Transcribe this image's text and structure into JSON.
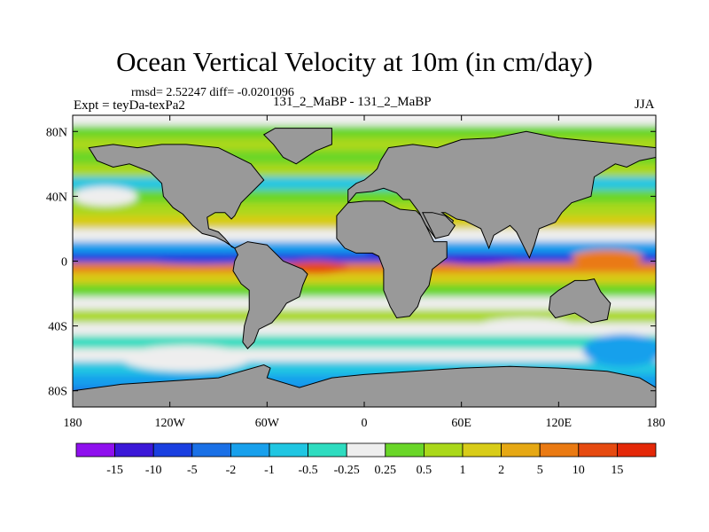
{
  "chart_data": {
    "type": "heatmap",
    "title": "Ocean Vertical Velocity at 10m (in cm/day)",
    "stats": "rmsd= 2.52247 diff= -0.0201096",
    "left_label": "Expt = teyDa-texPa2",
    "center_label": "131_2_MaBP - 131_2_MaBP",
    "right_label": "JJA",
    "xlim": [
      -180,
      180
    ],
    "ylim": [
      -90,
      90
    ],
    "x_ticks": [
      {
        "value": -180,
        "label": "180"
      },
      {
        "value": -120,
        "label": "120W"
      },
      {
        "value": -60,
        "label": "60W"
      },
      {
        "value": 0,
        "label": "0"
      },
      {
        "value": 60,
        "label": "60E"
      },
      {
        "value": 120,
        "label": "120E"
      },
      {
        "value": 180,
        "label": "180"
      }
    ],
    "y_ticks": [
      {
        "value": 80,
        "label": "80N"
      },
      {
        "value": 40,
        "label": "40N"
      },
      {
        "value": 0,
        "label": "0"
      },
      {
        "value": -40,
        "label": "40S"
      },
      {
        "value": -80,
        "label": "80S"
      }
    ],
    "colorbar": {
      "labels": [
        "-15",
        "-10",
        "-5",
        "-2",
        "-1",
        "-0.5",
        "-0.25",
        "0.25",
        "0.5",
        "1",
        "2",
        "5",
        "10",
        "15"
      ],
      "colors": [
        "#8f10ee",
        "#3b18d8",
        "#1a3fe0",
        "#1a70e6",
        "#18a0ec",
        "#20c6e2",
        "#2edcc0",
        "#eeeeee",
        "#6ad628",
        "#aad81a",
        "#d8cc18",
        "#e6a814",
        "#ea7a12",
        "#e64a10",
        "#e42808"
      ]
    },
    "land_color": "#999999",
    "land_masses": [
      {
        "name": "North America",
        "points": [
          [
            -170,
            70
          ],
          [
            -155,
            72
          ],
          [
            -140,
            70
          ],
          [
            -125,
            72
          ],
          [
            -110,
            72
          ],
          [
            -90,
            70
          ],
          [
            -80,
            65
          ],
          [
            -70,
            60
          ],
          [
            -62,
            50
          ],
          [
            -68,
            44
          ],
          [
            -76,
            36
          ],
          [
            -80,
            28
          ],
          [
            -82,
            26
          ],
          [
            -86,
            30
          ],
          [
            -92,
            30
          ],
          [
            -97,
            27
          ],
          [
            -96,
            20
          ],
          [
            -90,
            18
          ],
          [
            -86,
            14
          ],
          [
            -82,
            9
          ],
          [
            -80,
            8
          ],
          [
            -86,
            12
          ],
          [
            -92,
            15
          ],
          [
            -100,
            17
          ],
          [
            -106,
            22
          ],
          [
            -112,
            29
          ],
          [
            -118,
            33
          ],
          [
            -124,
            40
          ],
          [
            -125,
            48
          ],
          [
            -132,
            55
          ],
          [
            -145,
            60
          ],
          [
            -155,
            58
          ],
          [
            -165,
            62
          ]
        ]
      },
      {
        "name": "Greenland",
        "points": [
          [
            -55,
            82
          ],
          [
            -20,
            82
          ],
          [
            -20,
            72
          ],
          [
            -30,
            68
          ],
          [
            -42,
            60
          ],
          [
            -50,
            64
          ],
          [
            -56,
            72
          ],
          [
            -62,
            78
          ]
        ]
      },
      {
        "name": "South America",
        "points": [
          [
            -80,
            8
          ],
          [
            -72,
            12
          ],
          [
            -60,
            10
          ],
          [
            -50,
            0
          ],
          [
            -38,
            -5
          ],
          [
            -35,
            -8
          ],
          [
            -38,
            -15
          ],
          [
            -40,
            -22
          ],
          [
            -48,
            -26
          ],
          [
            -52,
            -32
          ],
          [
            -57,
            -38
          ],
          [
            -65,
            -42
          ],
          [
            -68,
            -50
          ],
          [
            -72,
            -54
          ],
          [
            -75,
            -50
          ],
          [
            -74,
            -40
          ],
          [
            -71,
            -30
          ],
          [
            -71,
            -18
          ],
          [
            -76,
            -14
          ],
          [
            -81,
            -6
          ],
          [
            -80,
            0
          ],
          [
            -78,
            4
          ]
        ]
      },
      {
        "name": "Africa",
        "points": [
          [
            -17,
            28
          ],
          [
            -10,
            36
          ],
          [
            0,
            37
          ],
          [
            12,
            37
          ],
          [
            22,
            32
          ],
          [
            32,
            31
          ],
          [
            35,
            28
          ],
          [
            43,
            12
          ],
          [
            51,
            12
          ],
          [
            51,
            2
          ],
          [
            42,
            -5
          ],
          [
            40,
            -15
          ],
          [
            35,
            -22
          ],
          [
            33,
            -28
          ],
          [
            28,
            -34
          ],
          [
            20,
            -35
          ],
          [
            16,
            -28
          ],
          [
            12,
            -18
          ],
          [
            12,
            -5
          ],
          [
            9,
            3
          ],
          [
            5,
            5
          ],
          [
            -5,
            5
          ],
          [
            -12,
            8
          ],
          [
            -17,
            14
          ]
        ]
      },
      {
        "name": "Eurasia",
        "points": [
          [
            -10,
            36
          ],
          [
            -10,
            44
          ],
          [
            -5,
            48
          ],
          [
            0,
            50
          ],
          [
            5,
            54
          ],
          [
            8,
            57
          ],
          [
            10,
            62
          ],
          [
            15,
            70
          ],
          [
            30,
            72
          ],
          [
            45,
            70
          ],
          [
            60,
            75
          ],
          [
            80,
            76
          ],
          [
            100,
            80
          ],
          [
            120,
            76
          ],
          [
            140,
            74
          ],
          [
            160,
            72
          ],
          [
            180,
            70
          ],
          [
            180,
            64
          ],
          [
            170,
            62
          ],
          [
            162,
            58
          ],
          [
            155,
            60
          ],
          [
            142,
            52
          ],
          [
            140,
            40
          ],
          [
            128,
            36
          ],
          [
            122,
            30
          ],
          [
            118,
            24
          ],
          [
            108,
            20
          ],
          [
            105,
            10
          ],
          [
            102,
            2
          ],
          [
            98,
            10
          ],
          [
            94,
            18
          ],
          [
            90,
            22
          ],
          [
            80,
            16
          ],
          [
            77,
            8
          ],
          [
            72,
            20
          ],
          [
            62,
            25
          ],
          [
            57,
            26
          ],
          [
            50,
            30
          ],
          [
            48,
            30
          ],
          [
            55,
            25
          ],
          [
            52,
            18
          ],
          [
            44,
            14
          ],
          [
            38,
            22
          ],
          [
            34,
            30
          ],
          [
            28,
            38
          ],
          [
            24,
            38
          ],
          [
            20,
            42
          ],
          [
            12,
            45
          ],
          [
            5,
            43
          ],
          [
            -5,
            42
          ]
        ]
      },
      {
        "name": "Arabia",
        "points": [
          [
            36,
            30
          ],
          [
            44,
            14
          ],
          [
            52,
            16
          ],
          [
            56,
            22
          ],
          [
            50,
            28
          ],
          [
            42,
            30
          ]
        ]
      },
      {
        "name": "Australia",
        "points": [
          [
            115,
            -22
          ],
          [
            120,
            -18
          ],
          [
            130,
            -12
          ],
          [
            137,
            -12
          ],
          [
            142,
            -11
          ],
          [
            146,
            -19
          ],
          [
            152,
            -26
          ],
          [
            150,
            -36
          ],
          [
            140,
            -38
          ],
          [
            130,
            -32
          ],
          [
            118,
            -35
          ],
          [
            114,
            -30
          ]
        ]
      },
      {
        "name": "Antarctica",
        "points": [
          [
            -180,
            -80
          ],
          [
            -150,
            -76
          ],
          [
            -120,
            -74
          ],
          [
            -90,
            -72
          ],
          [
            -62,
            -64
          ],
          [
            -58,
            -66
          ],
          [
            -60,
            -72
          ],
          [
            -40,
            -78
          ],
          [
            -20,
            -72
          ],
          [
            0,
            -70
          ],
          [
            30,
            -68
          ],
          [
            60,
            -66
          ],
          [
            90,
            -65
          ],
          [
            120,
            -66
          ],
          [
            150,
            -68
          ],
          [
            170,
            -72
          ],
          [
            180,
            -78
          ],
          [
            180,
            -90
          ],
          [
            -180,
            -90
          ]
        ]
      }
    ],
    "field_bands": [
      {
        "lat": 87,
        "level": 7
      },
      {
        "lat": 80,
        "level": 8
      },
      {
        "lat": 72,
        "level": 9
      },
      {
        "lat": 64,
        "level": 8
      },
      {
        "lat": 56,
        "level": 9
      },
      {
        "lat": 48,
        "level": 5
      },
      {
        "lat": 40,
        "level": 8
      },
      {
        "lat": 32,
        "level": 9
      },
      {
        "lat": 24,
        "level": 10
      },
      {
        "lat": 16,
        "level": 7
      },
      {
        "lat": 8,
        "level": 4
      },
      {
        "lat": 2,
        "level": 2
      },
      {
        "lat": -4,
        "level": 12
      },
      {
        "lat": -10,
        "level": 10
      },
      {
        "lat": -18,
        "level": 8
      },
      {
        "lat": -26,
        "level": 7
      },
      {
        "lat": -34,
        "level": 9
      },
      {
        "lat": -42,
        "level": 7
      },
      {
        "lat": -50,
        "level": 6
      },
      {
        "lat": -58,
        "level": 7
      },
      {
        "lat": -66,
        "level": 5
      },
      {
        "lat": -74,
        "level": 4
      },
      {
        "lat": -82,
        "level": 3
      }
    ],
    "features": [
      {
        "lon": -100,
        "lat": 1,
        "rx": 40,
        "ry": 3,
        "level": 2
      },
      {
        "lon": -30,
        "lat": -4,
        "rx": 20,
        "ry": 4,
        "level": 13
      },
      {
        "lon": 70,
        "lat": 1,
        "rx": 25,
        "ry": 3,
        "level": 1
      },
      {
        "lon": 150,
        "lat": 2,
        "rx": 22,
        "ry": 5,
        "level": 12
      },
      {
        "lon": 15,
        "lat": 10,
        "rx": 18,
        "ry": 6,
        "level": 1
      },
      {
        "lon": -110,
        "lat": -60,
        "rx": 40,
        "ry": 8,
        "level": 7
      },
      {
        "lon": 160,
        "lat": -55,
        "rx": 25,
        "ry": 10,
        "level": 4
      },
      {
        "lon": -160,
        "lat": 40,
        "rx": 20,
        "ry": 6,
        "level": 7
      },
      {
        "lon": 100,
        "lat": -40,
        "rx": 30,
        "ry": 5,
        "level": 7
      }
    ]
  }
}
